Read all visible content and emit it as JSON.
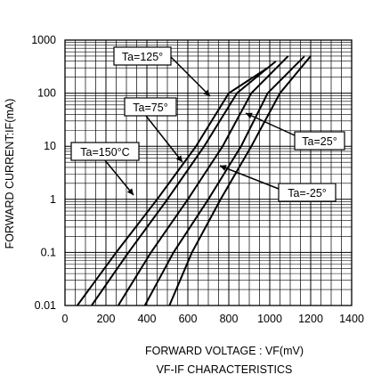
{
  "chart_data": {
    "type": "line",
    "title": "",
    "subtitle": "VF-IF CHARACTERISTICS",
    "xlabel": "FORWARD VOLTAGE : VF(mV)",
    "ylabel": "FORWARD CURRENT:IF(mA)",
    "xlim": [
      0,
      1400
    ],
    "ylim": [
      0.01,
      1000
    ],
    "yscale": "log",
    "grid": true,
    "x_ticks": [
      0,
      200,
      400,
      600,
      800,
      1000,
      1200,
      1400
    ],
    "y_ticks": [
      0.01,
      0.1,
      1,
      10,
      100,
      1000
    ],
    "x_tick_labels": [
      "0",
      "200",
      "400",
      "600",
      "800",
      "1000",
      "1200",
      "1400"
    ],
    "y_tick_labels": [
      "0.01",
      "0.1",
      "1",
      "10",
      "100",
      "1000"
    ],
    "series": [
      {
        "name": "Ta=150°C",
        "x": [
          60,
          250,
          450,
          640,
          800,
          990
        ],
        "y": [
          0.01,
          0.1,
          1,
          10,
          100,
          300
        ]
      },
      {
        "name": "Ta=125°",
        "x": [
          130,
          310,
          500,
          680,
          840,
          1030
        ],
        "y": [
          0.01,
          0.1,
          1,
          10,
          100,
          400
        ]
      },
      {
        "name": "Ta=75°",
        "x": [
          260,
          420,
          600,
          770,
          910,
          1090
        ],
        "y": [
          0.01,
          0.1,
          1,
          10,
          100,
          500
        ]
      },
      {
        "name": "Ta=25°",
        "x": [
          390,
          530,
          700,
          860,
          990,
          1170
        ],
        "y": [
          0.01,
          0.1,
          1,
          10,
          100,
          500
        ]
      },
      {
        "name": "Ta=-25°",
        "x": [
          510,
          620,
          760,
          910,
          1050,
          1200
        ],
        "y": [
          0.01,
          0.1,
          1,
          10,
          100,
          500
        ]
      }
    ],
    "annotations": [
      {
        "text": "Ta=125°",
        "series": "Ta=125°"
      },
      {
        "text": "Ta=75°",
        "series": "Ta=75°"
      },
      {
        "text": "Ta=150°C",
        "series": "Ta=150°C"
      },
      {
        "text": "Ta=25°",
        "series": "Ta=25°"
      },
      {
        "text": "Ta=-25°",
        "series": "Ta=-25°"
      }
    ],
    "colors": {
      "line": "#000000",
      "grid": "#000000",
      "background": "#ffffff"
    }
  }
}
